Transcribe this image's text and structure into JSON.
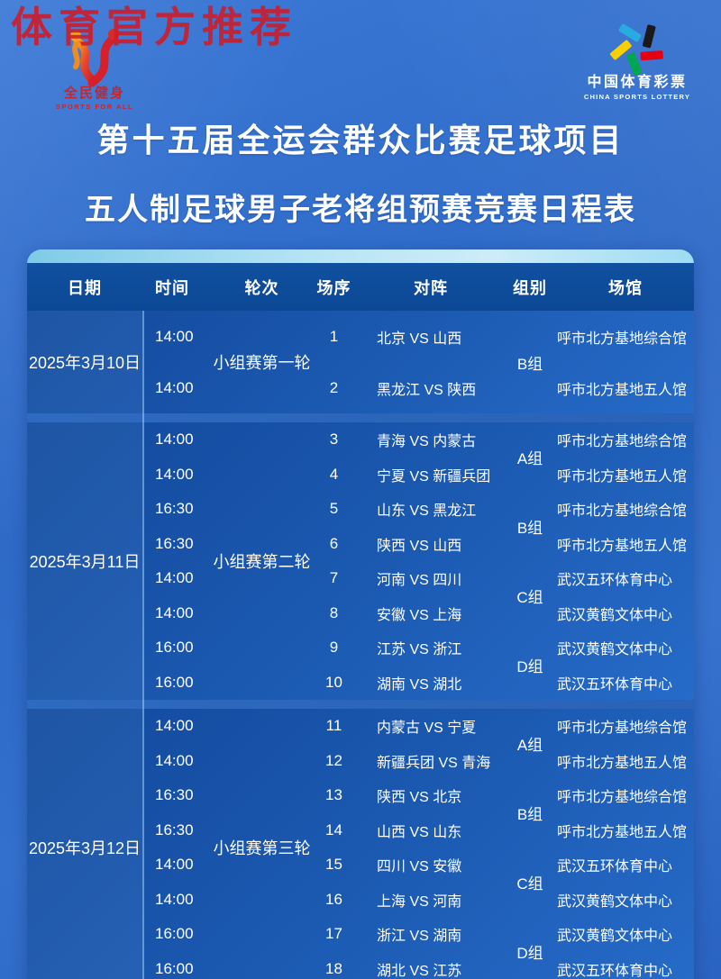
{
  "watermark": "体育官方推荐",
  "logos": {
    "left": {
      "name": "全民健身",
      "subtitle": "SPORTS FOR ALL"
    },
    "right": {
      "name": "中国体育彩票",
      "subtitle": "CHINA SPORTS LOTTERY"
    }
  },
  "title": {
    "line1": "第十五届全运会群众比赛足球项目",
    "line2": "五人制足球男子老将组预赛竞赛日程表"
  },
  "colors": {
    "brand_red": "#d01a26",
    "lottery_black": "#1a1a1a",
    "lottery_red": "#e60012",
    "lottery_green": "#00a650",
    "lottery_yellow": "#f8d000",
    "lottery_blue": "#29abe2",
    "card_strip": "#b9e5f5",
    "header_blue": "#0c4896"
  },
  "table": {
    "headers": [
      "日期",
      "时间",
      "轮次",
      "场序",
      "对阵",
      "组别",
      "场馆"
    ],
    "blocks": [
      {
        "date": "2025年3月10日",
        "round": "小组赛第一轮",
        "rows": [
          {
            "time": "14:00",
            "no": "1",
            "match": "北京 VS 山西",
            "venue": "呼市北方基地综合馆"
          },
          {
            "time": "14:00",
            "no": "2",
            "match": "黑龙江 VS 陕西",
            "venue": "呼市北方基地五人馆"
          }
        ],
        "groups": [
          {
            "label": "B组",
            "span": 2
          }
        ]
      },
      {
        "date": "2025年3月11日",
        "round": "小组赛第二轮",
        "rows": [
          {
            "time": "14:00",
            "no": "3",
            "match": "青海 VS 内蒙古",
            "venue": "呼市北方基地综合馆"
          },
          {
            "time": "14:00",
            "no": "4",
            "match": "宁夏 VS 新疆兵团",
            "venue": "呼市北方基地五人馆"
          },
          {
            "time": "16:30",
            "no": "5",
            "match": "山东 VS 黑龙江",
            "venue": "呼市北方基地综合馆"
          },
          {
            "time": "16:30",
            "no": "6",
            "match": "陕西 VS 山西",
            "venue": "呼市北方基地五人馆"
          },
          {
            "time": "14:00",
            "no": "7",
            "match": "河南 VS 四川",
            "venue": "武汉五环体育中心"
          },
          {
            "time": "14:00",
            "no": "8",
            "match": "安徽 VS 上海",
            "venue": "武汉黄鹤文体中心"
          },
          {
            "time": "16:00",
            "no": "9",
            "match": "江苏 VS 浙江",
            "venue": "武汉黄鹤文体中心"
          },
          {
            "time": "16:00",
            "no": "10",
            "match": "湖南 VS 湖北",
            "venue": "武汉五环体育中心"
          }
        ],
        "groups": [
          {
            "label": "A组",
            "span": 2
          },
          {
            "label": "B组",
            "span": 2
          },
          {
            "label": "C组",
            "span": 2
          },
          {
            "label": "D组",
            "span": 2
          }
        ]
      },
      {
        "date": "2025年3月12日",
        "round": "小组赛第三轮",
        "rows": [
          {
            "time": "14:00",
            "no": "11",
            "match": "内蒙古 VS 宁夏",
            "venue": "呼市北方基地综合馆"
          },
          {
            "time": "14:00",
            "no": "12",
            "match": "新疆兵团 VS 青海",
            "venue": "呼市北方基地五人馆"
          },
          {
            "time": "16:30",
            "no": "13",
            "match": "陕西 VS 北京",
            "venue": "呼市北方基地综合馆"
          },
          {
            "time": "16:30",
            "no": "14",
            "match": "山西 VS 山东",
            "venue": "呼市北方基地五人馆"
          },
          {
            "time": "14:00",
            "no": "15",
            "match": "四川 VS 安徽",
            "venue": "武汉五环体育中心"
          },
          {
            "time": "14:00",
            "no": "16",
            "match": "上海 VS 河南",
            "venue": "武汉黄鹤文体中心"
          },
          {
            "time": "16:00",
            "no": "17",
            "match": "浙江 VS 湖南",
            "venue": "武汉黄鹤文体中心"
          },
          {
            "time": "16:00",
            "no": "18",
            "match": "湖北 VS 江苏",
            "venue": "武汉五环体育中心"
          }
        ],
        "groups": [
          {
            "label": "A组",
            "span": 2
          },
          {
            "label": "B组",
            "span": 2
          },
          {
            "label": "C组",
            "span": 2
          },
          {
            "label": "D组",
            "span": 2
          }
        ]
      }
    ]
  }
}
